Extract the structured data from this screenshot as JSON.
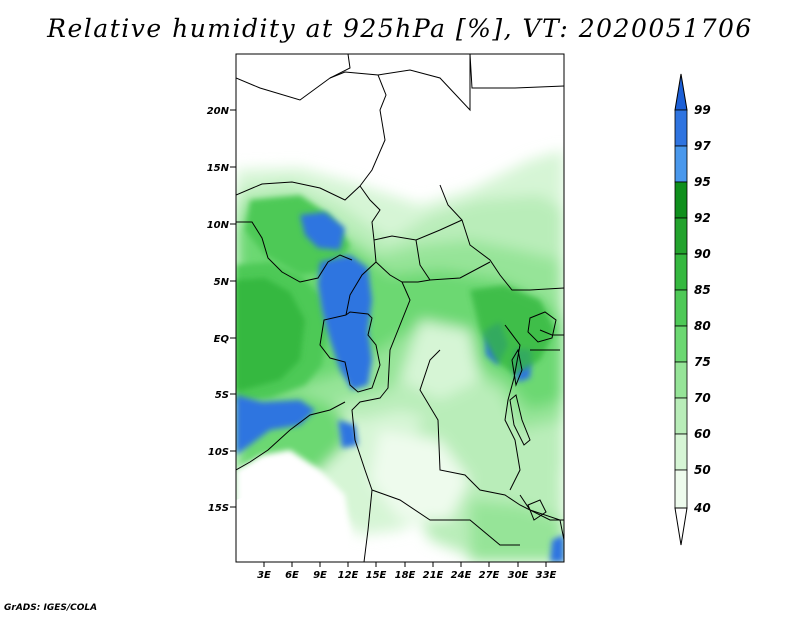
{
  "title": "Relative humidity at 925hPa [%], VT: 2020051706",
  "credit": "GrADS: IGES/COLA",
  "map": {
    "lat_ticks": [
      "20N",
      "15N",
      "10N",
      "5N",
      "EQ",
      "5S",
      "10S",
      "15S"
    ],
    "lon_ticks": [
      "3E",
      "6E",
      "9E",
      "12E",
      "15E",
      "18E",
      "21E",
      "24E",
      "27E",
      "30E",
      "33E"
    ],
    "variable": "relative humidity at 925hPa (%)"
  },
  "colorbar": {
    "levels": [
      "99",
      "97",
      "95",
      "92",
      "90",
      "85",
      "80",
      "75",
      "70",
      "60",
      "50",
      "40"
    ],
    "colors": {
      "above_99": "#1c5fd6",
      "97_99": "#2f74e0",
      "95_97": "#4a98ec",
      "92_95": "#0f8f1c",
      "90_92": "#23a32d",
      "85_90": "#35b83f",
      "80_85": "#4ec957",
      "75_80": "#6cd872",
      "70_75": "#96e498",
      "60_70": "#b9edb9",
      "50_60": "#d6f5d5",
      "40_50": "#eefbed",
      "below_40": "#ffffff"
    }
  }
}
